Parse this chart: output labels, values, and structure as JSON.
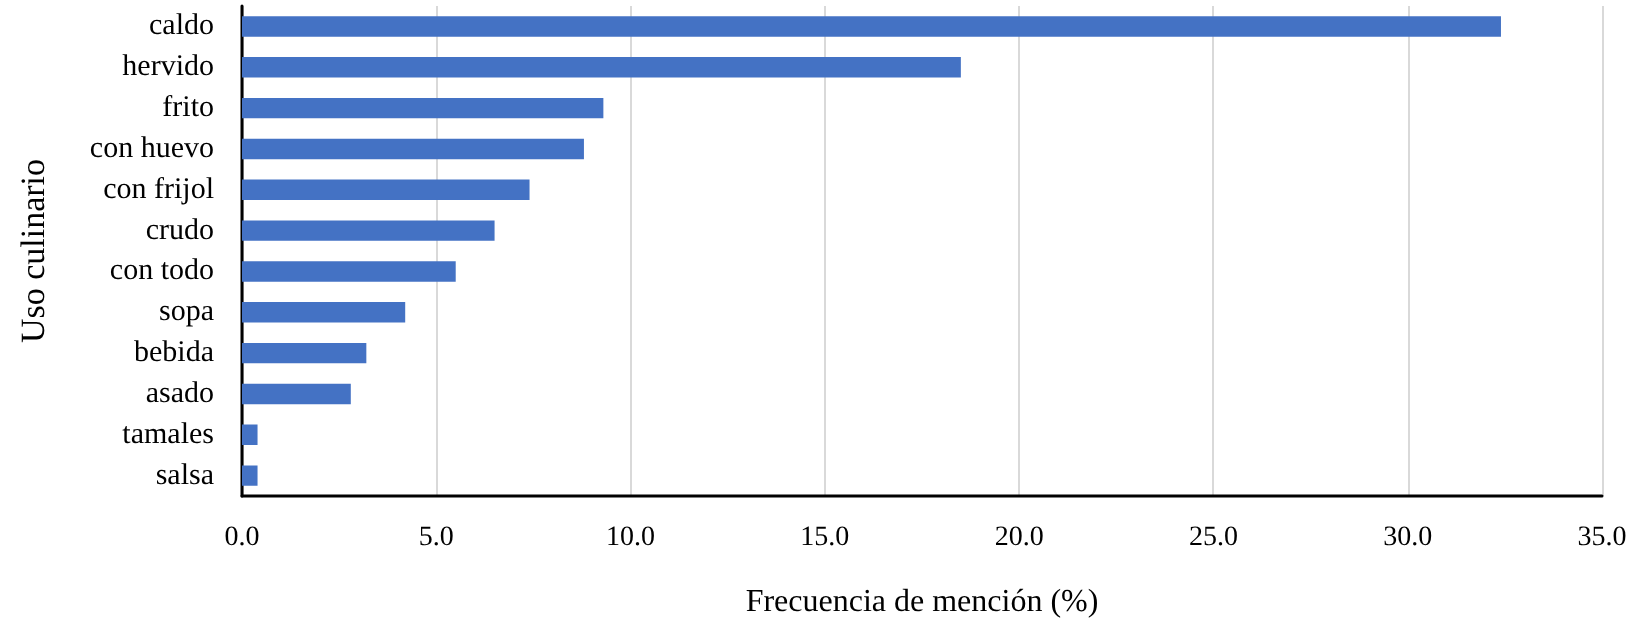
{
  "chart_data": {
    "type": "bar",
    "orientation": "horizontal",
    "xlabel": "Frecuencia de mención (%)",
    "ylabel": "Uso culinario",
    "categories": [
      "caldo",
      "hervido",
      "frito",
      "con huevo",
      "con frijol",
      "crudo",
      "con todo",
      "sopa",
      "bebida",
      "asado",
      "tamales",
      "salsa"
    ],
    "values": [
      32.4,
      18.5,
      9.3,
      8.8,
      7.4,
      6.5,
      5.5,
      4.2,
      3.2,
      2.8,
      0.4,
      0.4
    ],
    "color": "#4472c4",
    "xlim": [
      0,
      35
    ],
    "xticks": [
      {
        "value": 0,
        "label": "0.0"
      },
      {
        "value": 5,
        "label": "5.0"
      },
      {
        "value": 10,
        "label": "10.0"
      },
      {
        "value": 15,
        "label": "15.0"
      },
      {
        "value": 20,
        "label": "20.0"
      },
      {
        "value": 25,
        "label": "25.0"
      },
      {
        "value": 30,
        "label": "30.0"
      },
      {
        "value": 35,
        "label": "35.0"
      }
    ],
    "grid": "x"
  }
}
